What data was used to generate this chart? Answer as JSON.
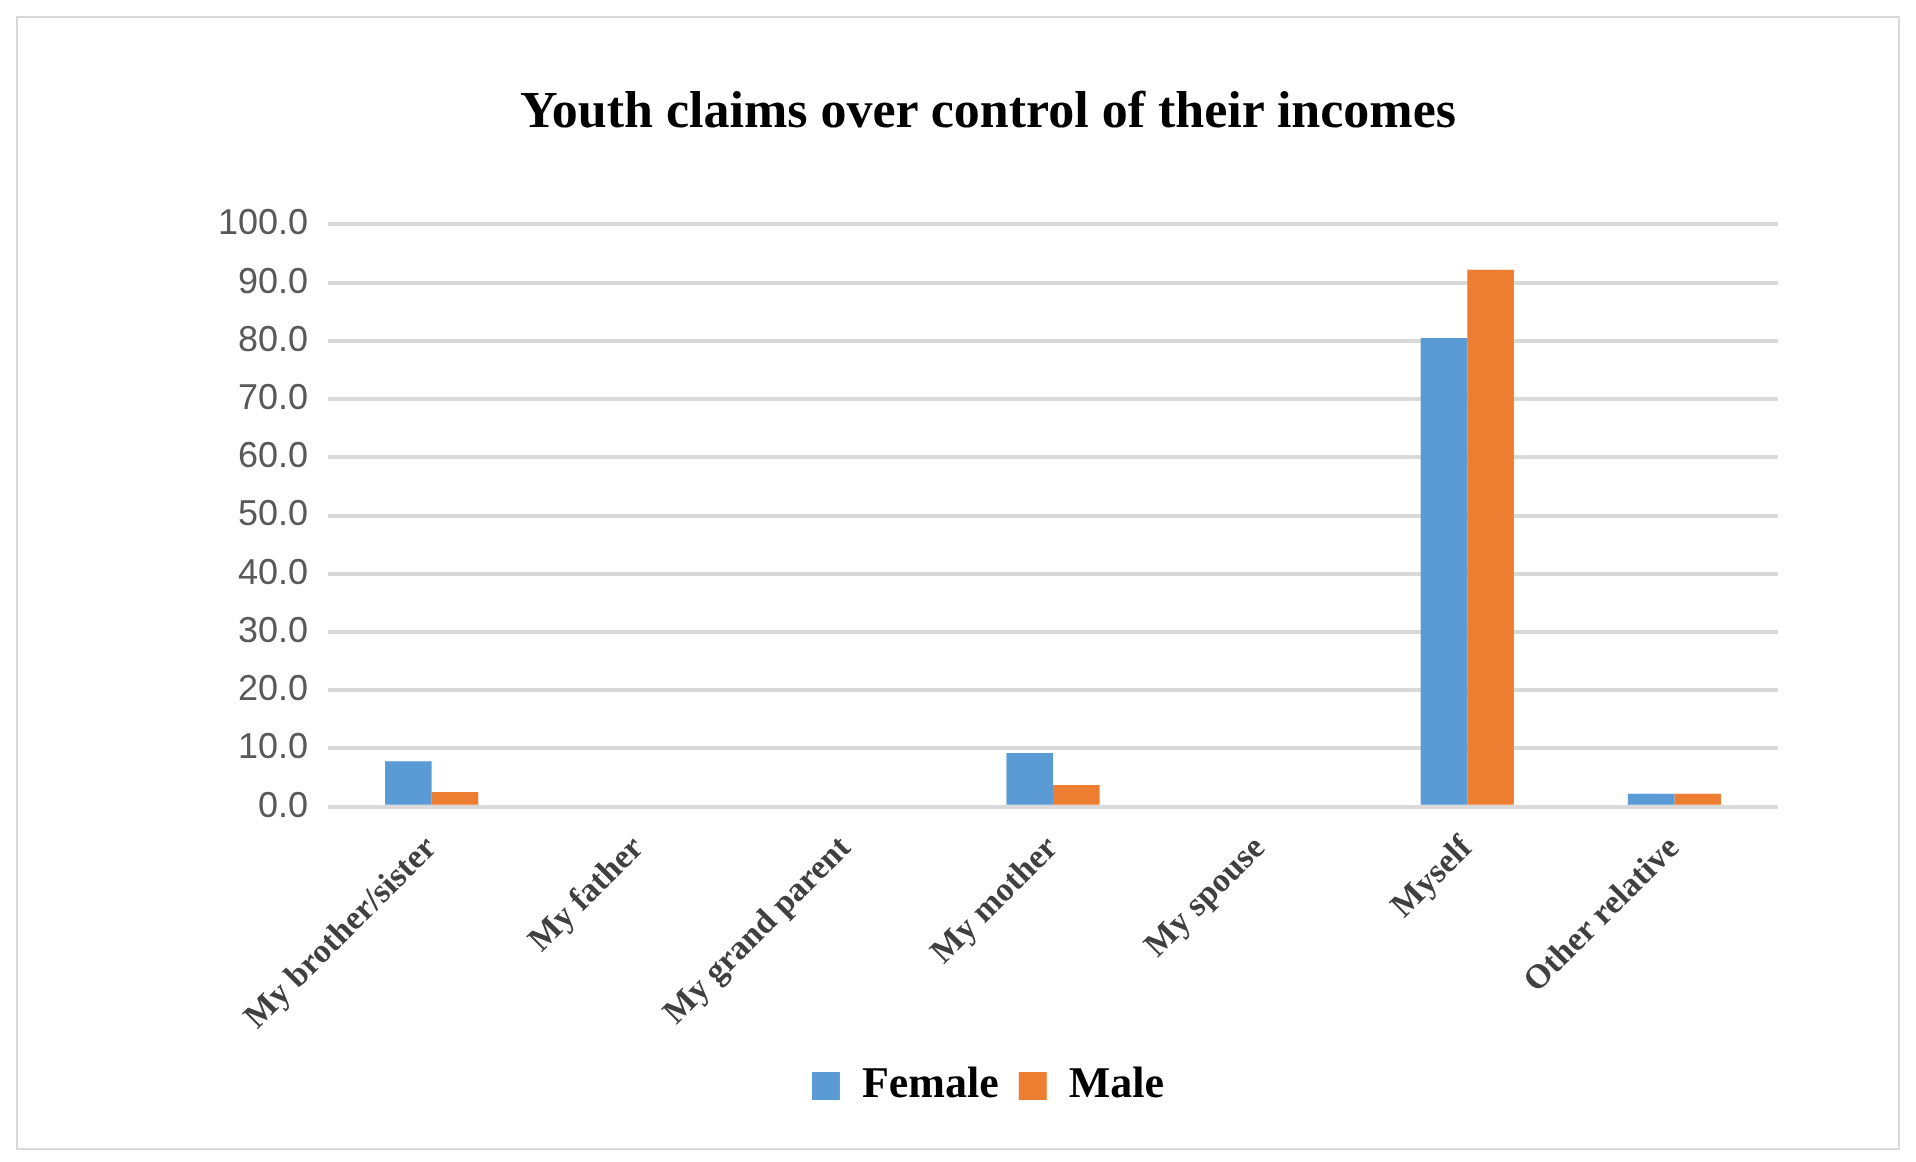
{
  "chart_data": {
    "type": "bar",
    "title": "Youth claims over control of their incomes",
    "categories": [
      "My brother/sister",
      "My father",
      "My grand parent",
      "My mother",
      "My spouse",
      "Myself",
      "Other relative"
    ],
    "series": [
      {
        "name": "Female",
        "color": "#5b9bd5",
        "values": [
          7.8,
          0,
          0,
          9.2,
          0,
          80.5,
          2.2
        ]
      },
      {
        "name": "Male",
        "color": "#ed7d31",
        "values": [
          2.5,
          0,
          0,
          3.7,
          0,
          92.2,
          2.2
        ]
      }
    ],
    "ylim": [
      0,
      100
    ],
    "yticks": [
      {
        "value": 0,
        "label": "0.0"
      },
      {
        "value": 10,
        "label": "10.0"
      },
      {
        "value": 20,
        "label": "20.0"
      },
      {
        "value": 30,
        "label": "30.0"
      },
      {
        "value": 40,
        "label": "40.0"
      },
      {
        "value": 50,
        "label": "50.0"
      },
      {
        "value": 60,
        "label": "60.0"
      },
      {
        "value": 70,
        "label": "70.0"
      },
      {
        "value": 80,
        "label": "80.0"
      },
      {
        "value": 90,
        "label": "90.0"
      },
      {
        "value": 100,
        "label": "100.0"
      }
    ],
    "grid": "y",
    "legend": "bottom"
  }
}
